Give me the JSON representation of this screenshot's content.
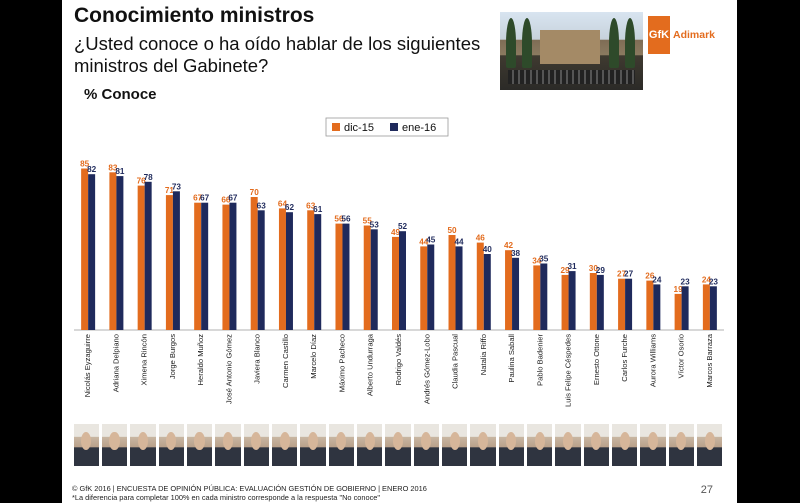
{
  "header": {
    "title": "Conocimiento ministros",
    "subtitle": "¿Usted conoce o ha oído hablar de los siguientes ministros del Gabinete?",
    "metric_label": "% Conoce"
  },
  "brand": {
    "logo_mark": "GfK",
    "logo_text": "Adimark"
  },
  "colors": {
    "dic15": "#e36c1e",
    "ene16": "#1f2a5c"
  },
  "chart_data": {
    "type": "bar",
    "categories": [
      "Nicolás Eyzaguirre",
      "Adriana Delpiano",
      "Ximena Rincón",
      "Jorge Burgos",
      "Heraldo Muñoz",
      "José Antonio Gómez",
      "Javiera Blanco",
      "Carmen Castillo",
      "Marcelo Díaz",
      "Máximo Pacheco",
      "Alberto Undurraga",
      "Rodrigo Valdés",
      "Andrés Gómez-Lobo",
      "Claudia Pascual",
      "Natalia Riffo",
      "Paulina Saball",
      "Pablo Badenier",
      "Luis Felipe Céspedes",
      "Ernesto Ottone",
      "Carlos Furche",
      "Aurora Williams",
      "Víctor Osorio",
      "Marcos Barraza"
    ],
    "series": [
      {
        "name": "dic-15",
        "values": [
          85,
          83,
          76,
          71,
          67,
          66,
          70,
          64,
          63,
          56,
          55,
          49,
          44,
          50,
          46,
          42,
          34,
          29,
          30,
          27,
          26,
          19,
          24
        ]
      },
      {
        "name": "ene-16",
        "values": [
          82,
          81,
          78,
          73,
          67,
          67,
          63,
          62,
          61,
          56,
          53,
          52,
          45,
          44,
          40,
          38,
          35,
          31,
          29,
          27,
          24,
          23,
          23
        ]
      }
    ],
    "ylim": [
      0,
      100
    ],
    "legend": "top-center",
    "grid": false
  },
  "footer": {
    "line1": "© GfK 2016 | ENCUESTA DE OPINIÓN PÚBLICA: EVALUACIÓN GESTIÓN DE GOBIERNO | ENERO 2016",
    "line2": "*La diferencia para completar 100% en cada ministro corresponde a la respuesta \"No conoce\"",
    "page": "27"
  }
}
